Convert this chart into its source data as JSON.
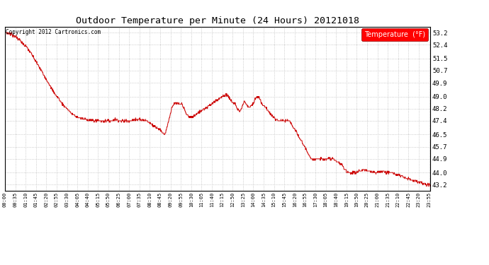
{
  "title": "Outdoor Temperature per Minute (24 Hours) 20121018",
  "copyright_text": "Copyright 2012 Cartronics.com",
  "legend_label": "Temperature  (°F)",
  "line_color": "#cc0000",
  "background_color": "#ffffff",
  "grid_color": "#aaaaaa",
  "yticks": [
    43.2,
    44.0,
    44.9,
    45.7,
    46.5,
    47.4,
    48.2,
    49.0,
    49.9,
    50.7,
    51.5,
    52.4,
    53.2
  ],
  "ylim": [
    42.8,
    53.6
  ],
  "total_minutes": 1440,
  "control_points": [
    [
      0.0,
      53.2
    ],
    [
      0.25,
      53.15
    ],
    [
      0.5,
      53.0
    ],
    [
      0.75,
      52.8
    ],
    [
      1.0,
      52.5
    ],
    [
      1.25,
      52.2
    ],
    [
      1.5,
      51.8
    ],
    [
      1.75,
      51.3
    ],
    [
      2.0,
      50.8
    ],
    [
      2.25,
      50.3
    ],
    [
      2.5,
      49.8
    ],
    [
      2.75,
      49.3
    ],
    [
      3.0,
      48.9
    ],
    [
      3.25,
      48.5
    ],
    [
      3.5,
      48.2
    ],
    [
      3.75,
      47.9
    ],
    [
      4.0,
      47.7
    ],
    [
      4.25,
      47.6
    ],
    [
      4.5,
      47.5
    ],
    [
      5.0,
      47.4
    ],
    [
      5.5,
      47.4
    ],
    [
      6.0,
      47.4
    ],
    [
      6.25,
      47.5
    ],
    [
      6.5,
      47.4
    ],
    [
      7.0,
      47.4
    ],
    [
      7.5,
      47.5
    ],
    [
      8.0,
      47.4
    ],
    [
      8.25,
      47.2
    ],
    [
      8.5,
      47.0
    ],
    [
      8.75,
      46.8
    ],
    [
      9.0,
      46.5
    ],
    [
      9.1,
      46.8
    ],
    [
      9.25,
      47.5
    ],
    [
      9.4,
      48.2
    ],
    [
      9.5,
      48.4
    ],
    [
      9.6,
      48.6
    ],
    [
      9.75,
      48.5
    ],
    [
      10.0,
      48.5
    ],
    [
      10.25,
      47.8
    ],
    [
      10.5,
      47.6
    ],
    [
      10.75,
      47.8
    ],
    [
      11.0,
      48.0
    ],
    [
      11.25,
      48.2
    ],
    [
      11.5,
      48.4
    ],
    [
      11.75,
      48.6
    ],
    [
      12.0,
      48.8
    ],
    [
      12.25,
      49.0
    ],
    [
      12.5,
      49.1
    ],
    [
      12.6,
      49.0
    ],
    [
      12.75,
      48.7
    ],
    [
      13.0,
      48.5
    ],
    [
      13.1,
      48.2
    ],
    [
      13.25,
      48.0
    ],
    [
      13.4,
      48.4
    ],
    [
      13.5,
      48.7
    ],
    [
      13.6,
      48.5
    ],
    [
      13.75,
      48.3
    ],
    [
      14.0,
      48.5
    ],
    [
      14.1,
      48.8
    ],
    [
      14.25,
      49.0
    ],
    [
      14.4,
      48.8
    ],
    [
      14.5,
      48.5
    ],
    [
      14.75,
      48.2
    ],
    [
      15.0,
      47.8
    ],
    [
      15.25,
      47.5
    ],
    [
      15.5,
      47.4
    ],
    [
      15.75,
      47.4
    ],
    [
      16.0,
      47.4
    ],
    [
      16.1,
      47.3
    ],
    [
      16.25,
      47.0
    ],
    [
      16.5,
      46.5
    ],
    [
      16.75,
      46.0
    ],
    [
      17.0,
      45.5
    ],
    [
      17.15,
      45.1
    ],
    [
      17.25,
      44.9
    ],
    [
      17.5,
      44.9
    ],
    [
      18.0,
      44.9
    ],
    [
      18.5,
      44.9
    ],
    [
      18.6,
      44.8
    ],
    [
      18.75,
      44.7
    ],
    [
      19.0,
      44.5
    ],
    [
      19.1,
      44.3
    ],
    [
      19.25,
      44.1
    ],
    [
      19.4,
      44.0
    ],
    [
      19.5,
      44.0
    ],
    [
      19.75,
      44.0
    ],
    [
      20.0,
      44.1
    ],
    [
      20.25,
      44.2
    ],
    [
      20.5,
      44.1
    ],
    [
      20.75,
      44.0
    ],
    [
      21.0,
      44.0
    ],
    [
      21.25,
      44.1
    ],
    [
      21.5,
      44.0
    ],
    [
      21.75,
      44.0
    ],
    [
      22.0,
      43.9
    ],
    [
      22.25,
      43.8
    ],
    [
      22.5,
      43.7
    ],
    [
      22.75,
      43.6
    ],
    [
      23.0,
      43.5
    ],
    [
      23.25,
      43.4
    ],
    [
      23.5,
      43.3
    ],
    [
      23.75,
      43.2
    ],
    [
      23.92,
      43.2
    ]
  ]
}
